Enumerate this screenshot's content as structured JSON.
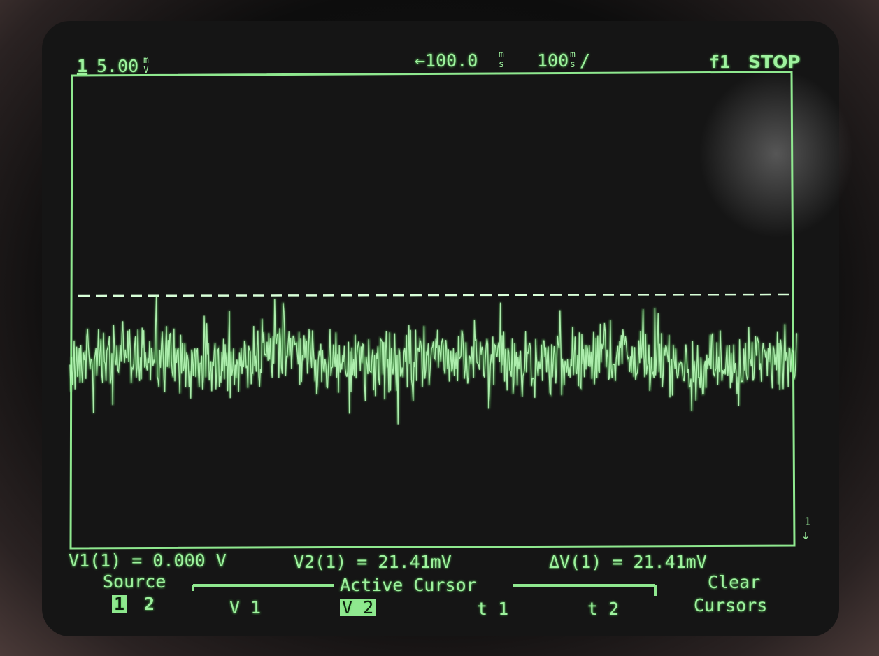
{
  "header": {
    "channel": "1",
    "scale": "5.00",
    "scale_unit_top": "m",
    "scale_unit_bottom": "V",
    "delay": "←100.0",
    "delay_unit_top": "m",
    "delay_unit_bottom": "s",
    "timebase": "100",
    "timebase_unit_top": "m",
    "timebase_unit_bottom": "s",
    "timebase_per": "/",
    "trigger": "f1",
    "run_state": "STOP"
  },
  "marker": {
    "label": "1",
    "arrow": "↓"
  },
  "readout": {
    "v1": "V1(1) = 0.000 V",
    "v2": "V2(1) = 21.41mV",
    "dv": "ΔV(1) = 21.41mV"
  },
  "softkeys": {
    "source_label": "Source",
    "source_1": "1",
    "source_2": "2",
    "active_cursor": "Active Cursor",
    "v1": "V 1",
    "v2": "V 2",
    "t1": "t 1",
    "t2": "t 2",
    "clear_line1": "Clear",
    "clear_line2": "Cursors"
  }
}
